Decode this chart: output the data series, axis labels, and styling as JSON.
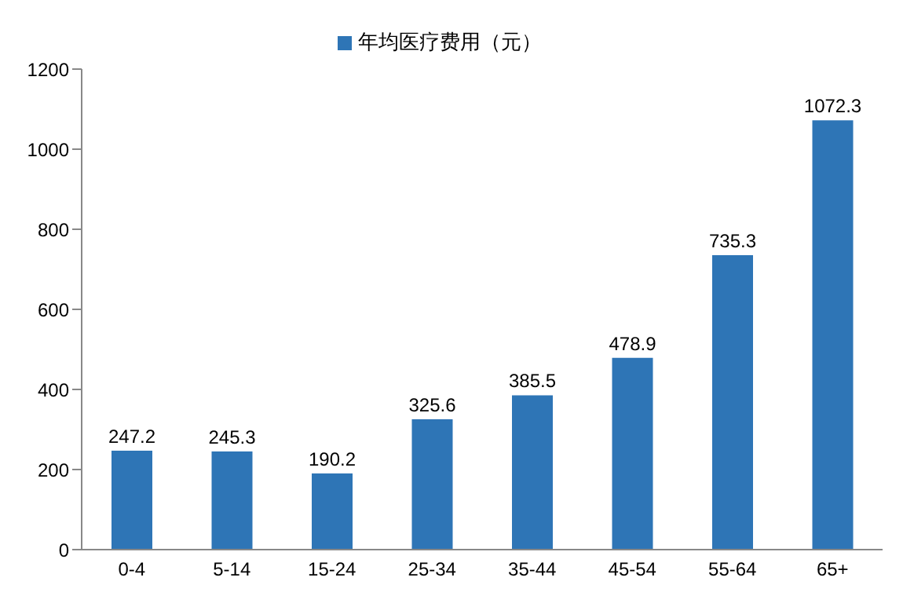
{
  "chart_data": {
    "type": "bar",
    "categories": [
      "0-4",
      "5-14",
      "15-24",
      "25-34",
      "35-44",
      "45-54",
      "55-64",
      "65+"
    ],
    "series": [
      {
        "name": "年均医疗费用（元）",
        "color": "#2e75b6",
        "values": [
          247.2,
          245.3,
          190.2,
          325.6,
          385.5,
          478.9,
          735.3,
          1072.3
        ]
      }
    ],
    "ylim": [
      0,
      1200
    ],
    "yticks": [
      0,
      200,
      400,
      600,
      800,
      1000,
      1200
    ],
    "grid": false,
    "legend": "top",
    "data_labels": true
  }
}
